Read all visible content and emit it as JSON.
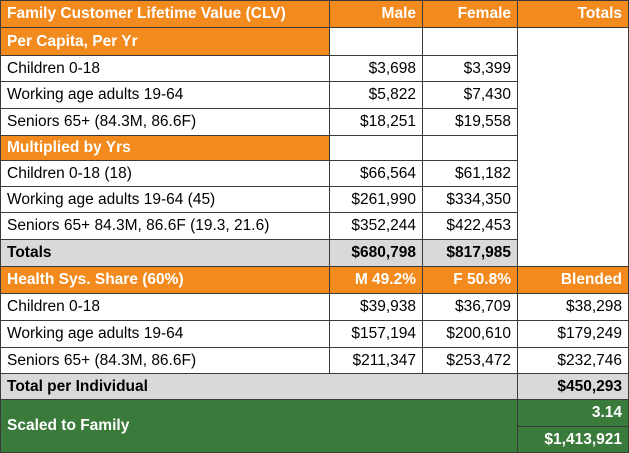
{
  "header": {
    "title": "Family Customer Lifetime Value (CLV)",
    "male": "Male",
    "female": "Female",
    "totals": "Totals"
  },
  "per_capita": {
    "label": "Per Capita, Per Yr",
    "rows": [
      {
        "label": "Children 0-18",
        "male": "$3,698",
        "female": "$3,399"
      },
      {
        "label": "Working age adults 19-64",
        "male": "$5,822",
        "female": "$7,430"
      },
      {
        "label": "Seniors 65+ (84.3M, 86.6F)",
        "male": "$18,251",
        "female": "$19,558"
      }
    ]
  },
  "multiplied": {
    "label": "Multiplied by Yrs",
    "rows": [
      {
        "label": "Children 0-18 (18)",
        "male": "$66,564",
        "female": "$61,182"
      },
      {
        "label": "Working age adults 19-64 (45)",
        "male": "$261,990",
        "female": "$334,350"
      },
      {
        "label": "Seniors 65+ 84.3M, 86.6F (19.3, 21.6)",
        "male": "$352,244",
        "female": "$422,453"
      }
    ]
  },
  "totals_row": {
    "label": "Totals",
    "male": "$680,798",
    "female": "$817,985"
  },
  "health": {
    "label": "Health Sys. Share (60%)",
    "male": "M 49.2%",
    "female": "F 50.8%",
    "blended": "Blended",
    "rows": [
      {
        "label": "Children 0-18",
        "male": "$39,938",
        "female": "$36,709",
        "blended": "$38,298"
      },
      {
        "label": "Working age adults 19-64",
        "male": "$157,194",
        "female": "$200,610",
        "blended": "$179,249"
      },
      {
        "label": "Seniors 65+ (84.3M, 86.6F)",
        "male": "$211,347",
        "female": "$253,472",
        "blended": "$232,746"
      }
    ]
  },
  "total_individual": {
    "label": "Total per Individual",
    "value": "$450,293"
  },
  "family": {
    "label": "Scaled to Family",
    "factor": "3.14",
    "value": "$1,413,921"
  },
  "colors": {
    "orange": "#f28a1e",
    "gray": "#d9d9d9",
    "green": "#3a7a3a"
  }
}
